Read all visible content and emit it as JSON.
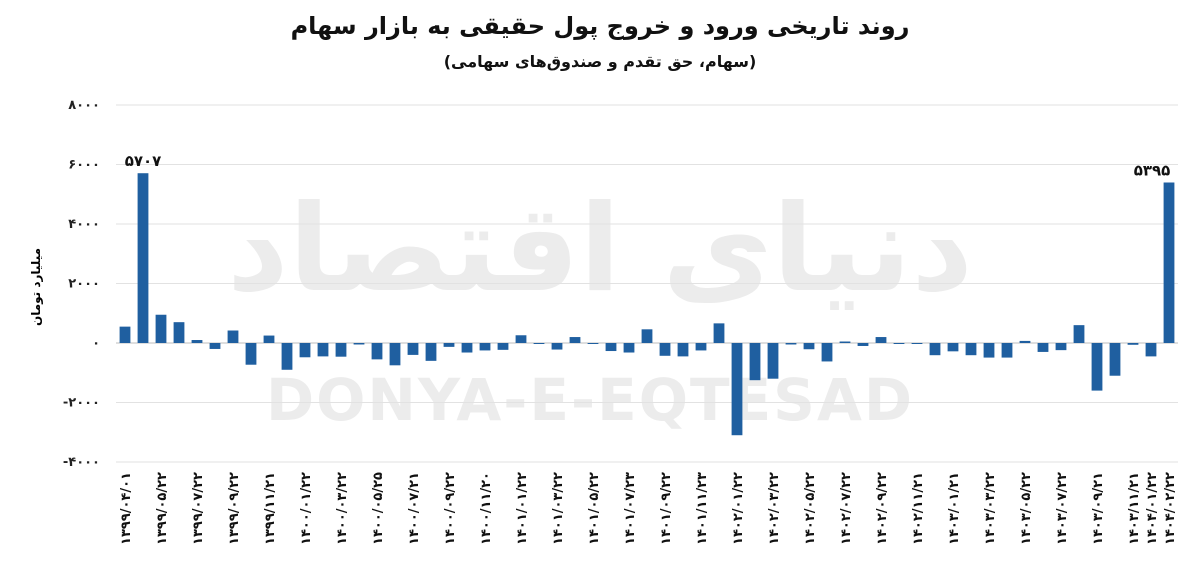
{
  "title": "روند تاریخی ورود و خروج پول حقیقی به بازار سهام",
  "subtitle": "(سهام، حق تقدم و صندوق‌های سهامی)",
  "watermark": {
    "latin": "DONYA-E-EQTESAD",
    "arabic": "دنیای اقتصاد"
  },
  "colors": {
    "bar": "#1f5fa0",
    "grid": "#e2e2e2",
    "zero_line": "#bdbdbd",
    "watermark": "#ececec"
  },
  "chart_data": {
    "type": "bar",
    "ylabel": "میلیارد تومان",
    "ylim": [
      -4000,
      8000
    ],
    "yticks": [
      "۸۰۰۰",
      "۶۰۰۰",
      "۴۰۰۰",
      "۲۰۰۰",
      "۰",
      "-۲۰۰۰",
      "-۴۰۰۰"
    ],
    "ytick_values": [
      8000,
      6000,
      4000,
      2000,
      0,
      -2000,
      -4000
    ],
    "grid": true,
    "values": [
      550,
      5707,
      950,
      700,
      100,
      -200,
      420,
      -730,
      250,
      -900,
      -480,
      -450,
      -460,
      -50,
      -550,
      -750,
      -400,
      -600,
      -130,
      -320,
      -250,
      -230,
      260,
      -30,
      -220,
      200,
      -20,
      -270,
      -320,
      460,
      -430,
      -450,
      -250,
      660,
      -3100,
      -1250,
      -1200,
      -50,
      -210,
      -620,
      50,
      -100,
      200,
      -20,
      -20,
      -410,
      -280,
      -410,
      -490,
      -490,
      70,
      -300,
      -240,
      600,
      -1600,
      -1100,
      -60,
      -450,
      5395
    ],
    "annotations": [
      {
        "index": 1,
        "text": "۵۷۰۷"
      },
      {
        "index": 58,
        "text": "۵۳۹۵"
      }
    ],
    "xlabels": [
      {
        "index": 0,
        "text": "۱۳۹۹/۰۴/۰۱"
      },
      {
        "index": 2,
        "text": "۱۳۹۹/۰۵/۲۲"
      },
      {
        "index": 4,
        "text": "۱۳۹۹/۰۷/۲۲"
      },
      {
        "index": 6,
        "text": "۱۳۹۹/۰۹/۲۲"
      },
      {
        "index": 8,
        "text": "۱۳۹۹/۱۱/۲۱"
      },
      {
        "index": 10,
        "text": "۱۴۰۰/۰۱/۲۲"
      },
      {
        "index": 12,
        "text": "۱۴۰۰/۰۳/۲۲"
      },
      {
        "index": 14,
        "text": "۱۴۰۰/۰۵/۲۵"
      },
      {
        "index": 16,
        "text": "۱۴۰۰/۰۷/۲۱"
      },
      {
        "index": 18,
        "text": "۱۴۰۰/۰۹/۲۲"
      },
      {
        "index": 20,
        "text": "۱۴۰۰/۱۱/۲۰"
      },
      {
        "index": 22,
        "text": "۱۴۰۱/۰۱/۲۲"
      },
      {
        "index": 24,
        "text": "۱۴۰۱/۰۳/۲۲"
      },
      {
        "index": 26,
        "text": "۱۴۰۱/۰۵/۲۲"
      },
      {
        "index": 28,
        "text": "۱۴۰۱/۰۷/۲۳"
      },
      {
        "index": 30,
        "text": "۱۴۰۱/۰۹/۲۲"
      },
      {
        "index": 32,
        "text": "۱۴۰۱/۱۱/۲۳"
      },
      {
        "index": 34,
        "text": "۱۴۰۲/۰۱/۲۲"
      },
      {
        "index": 36,
        "text": "۱۴۰۲/۰۳/۲۲"
      },
      {
        "index": 38,
        "text": "۱۴۰۲/۰۵/۲۲"
      },
      {
        "index": 40,
        "text": "۱۴۰۲/۰۷/۲۲"
      },
      {
        "index": 42,
        "text": "۱۴۰۲/۰۹/۲۲"
      },
      {
        "index": 44,
        "text": "۱۴۰۲/۱۱/۲۱"
      },
      {
        "index": 46,
        "text": "۱۴۰۳/۰۱/۲۱"
      },
      {
        "index": 48,
        "text": "۱۴۰۳/۰۳/۲۲"
      },
      {
        "index": 50,
        "text": "۱۴۰۳/۰۵/۲۲"
      },
      {
        "index": 52,
        "text": "۱۴۰۳/۰۷/۲۲"
      },
      {
        "index": 54,
        "text": "۱۴۰۳/۰۹/۲۱"
      },
      {
        "index": 56,
        "text": "۱۴۰۳/۱۱/۲۱"
      },
      {
        "index": 57,
        "text": "۱۴۰۴/۰۱/۲۲"
      },
      {
        "index": 58,
        "text": "۱۴۰۴/۰۲/۲۲"
      }
    ]
  }
}
